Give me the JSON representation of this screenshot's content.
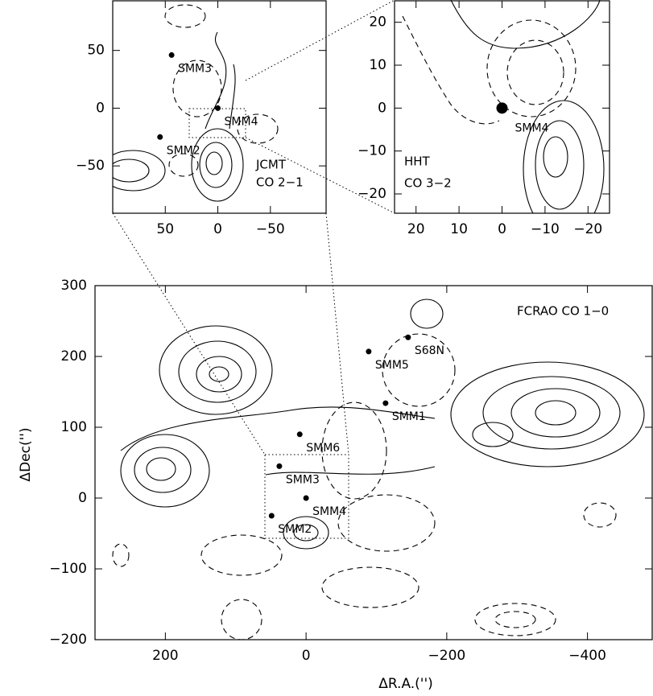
{
  "chart_data": [
    {
      "type": "scatter",
      "annotations": [
        "JCMT",
        "CO 2−1"
      ],
      "x": [
        44,
        0,
        55
      ],
      "y": [
        46,
        0,
        -25
      ],
      "labels": [
        "SMM3",
        "SMM4",
        "SMM2"
      ],
      "xlim": [
        100,
        -103
      ],
      "ylim": [
        -91,
        93
      ],
      "xticks": [
        50,
        0,
        {
          "value": -50,
          "label": "−50"
        }
      ],
      "yticks": [
        50,
        0,
        {
          "value": -50,
          "label": "−50"
        }
      ],
      "color": "#000000"
    },
    {
      "type": "scatter",
      "annotations": [
        "HHT",
        "CO 3−2"
      ],
      "x": [
        0
      ],
      "y": [
        0
      ],
      "labels": [
        "SMM4"
      ],
      "xlim": [
        25,
        -25
      ],
      "ylim": [
        -24.5,
        25
      ],
      "xticks": [
        20,
        10,
        0,
        {
          "value": -10,
          "label": "−10"
        },
        {
          "value": -20,
          "label": "−20"
        }
      ],
      "yticks": [
        20,
        10,
        0,
        {
          "value": -10,
          "label": "−10"
        },
        {
          "value": -20,
          "label": "−20"
        }
      ],
      "color": "#000000"
    },
    {
      "type": "scatter",
      "annotations": [
        "FCRAO CO 1−0"
      ],
      "xlabel": "ΔR.A.('')",
      "ylabel": "ΔDec('')",
      "x": [
        -113,
        -89,
        -145,
        9,
        38,
        0,
        49
      ],
      "y": [
        134,
        207,
        227,
        90,
        45,
        0,
        -25
      ],
      "labels": [
        "SMM1",
        "SMM5",
        "S68N",
        "SMM6",
        "SMM3",
        "SMM4",
        "SMM2"
      ],
      "xlim": [
        300,
        -492
      ],
      "ylim": [
        -200,
        300
      ],
      "xticks": [
        200,
        0,
        {
          "value": -200,
          "label": "−200"
        },
        {
          "value": -400,
          "label": "−400"
        }
      ],
      "yticks": [
        300,
        200,
        100,
        0,
        {
          "value": -100,
          "label": "−100"
        },
        {
          "value": -200,
          "label": "−200"
        }
      ],
      "color": "#000000"
    }
  ]
}
